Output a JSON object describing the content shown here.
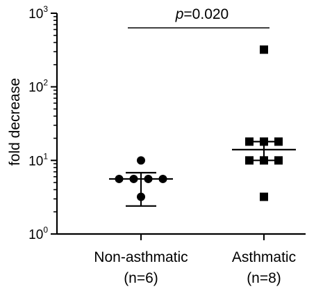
{
  "chart_data": {
    "type": "scatter",
    "ylabel": "fold decrease",
    "yscale": "log",
    "ylim": [
      1,
      1000
    ],
    "yticks": [
      {
        "value": 1,
        "base": "10",
        "exp": "0"
      },
      {
        "value": 10,
        "base": "10",
        "exp": "1"
      },
      {
        "value": 100,
        "base": "10",
        "exp": "2"
      },
      {
        "value": 1000,
        "base": "10",
        "exp": "3"
      }
    ],
    "categories": [
      {
        "name": "Non-asthmatic",
        "n": "(n=6)",
        "marker": "circle",
        "values": [
          10.0,
          5.6,
          5.6,
          5.6,
          5.6,
          3.2
        ],
        "mean": 5.6,
        "error_low": 2.4,
        "error_high": 6.8
      },
      {
        "name": "Asthmatic",
        "n": "(n=8)",
        "marker": "square",
        "values": [
          320,
          18,
          18,
          18,
          10,
          10,
          10,
          3.2
        ],
        "mean": 14,
        "error_low": 10,
        "error_high": 18
      }
    ],
    "annotation": {
      "italic": "p",
      "text": "=0.020"
    },
    "grid": false,
    "color": "#000000"
  }
}
